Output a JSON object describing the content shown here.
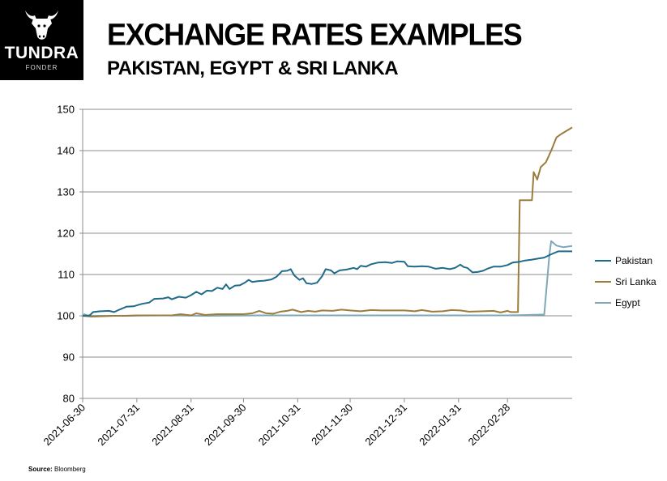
{
  "brand": {
    "name": "TUNDRA",
    "sub": "FONDER",
    "logo_icon": "bull-head-icon",
    "background": "#000000"
  },
  "title": "EXCHANGE RATES EXAMPLES",
  "subtitle": "PAKISTAN, EGYPT & SRI LANKA",
  "source": {
    "label": "Source:",
    "text": "Bloomberg"
  },
  "chart_data": {
    "type": "line",
    "title": "",
    "xlabel": "",
    "ylabel": "",
    "x_type": "date",
    "xlim": [
      "2021-06-30",
      "2022-04-06"
    ],
    "ylim": [
      80,
      150
    ],
    "yticks": [
      80,
      90,
      100,
      110,
      120,
      130,
      140,
      150
    ],
    "xticks": [
      "2021-06-30",
      "2021-07-31",
      "2021-08-31",
      "2021-09-30",
      "2021-10-31",
      "2021-11-30",
      "2021-12-31",
      "2022-01-31",
      "2022-02-28"
    ],
    "grid": "horizontal",
    "legend_position": "right",
    "series": [
      {
        "name": "Pakistan",
        "color": "#1f6b8a",
        "points": [
          [
            "2021-06-30",
            100.0
          ],
          [
            "2021-07-04",
            100.1
          ],
          [
            "2021-07-06",
            100.9
          ],
          [
            "2021-07-10",
            101.1
          ],
          [
            "2021-07-15",
            101.2
          ],
          [
            "2021-07-18",
            100.9
          ],
          [
            "2021-07-21",
            101.5
          ],
          [
            "2021-07-25",
            102.2
          ],
          [
            "2021-07-29",
            102.3
          ],
          [
            "2021-08-03",
            102.9
          ],
          [
            "2021-08-07",
            103.2
          ],
          [
            "2021-08-10",
            104.1
          ],
          [
            "2021-08-15",
            104.2
          ],
          [
            "2021-08-18",
            104.5
          ],
          [
            "2021-08-20",
            104.0
          ],
          [
            "2021-08-24",
            104.6
          ],
          [
            "2021-08-28",
            104.4
          ],
          [
            "2021-08-31",
            105.0
          ],
          [
            "2021-09-03",
            105.8
          ],
          [
            "2021-09-06",
            105.2
          ],
          [
            "2021-09-09",
            106.1
          ],
          [
            "2021-09-12",
            106.0
          ],
          [
            "2021-09-15",
            106.8
          ],
          [
            "2021-09-18",
            106.5
          ],
          [
            "2021-09-20",
            107.6
          ],
          [
            "2021-09-22",
            106.5
          ],
          [
            "2021-09-25",
            107.3
          ],
          [
            "2021-09-28",
            107.4
          ],
          [
            "2021-10-01",
            108.1
          ],
          [
            "2021-10-03",
            108.7
          ],
          [
            "2021-10-05",
            108.2
          ],
          [
            "2021-10-08",
            108.4
          ],
          [
            "2021-10-12",
            108.5
          ],
          [
            "2021-10-16",
            108.8
          ],
          [
            "2021-10-19",
            109.5
          ],
          [
            "2021-10-22",
            110.8
          ],
          [
            "2021-10-25",
            110.9
          ],
          [
            "2021-10-27",
            111.3
          ],
          [
            "2021-10-29",
            109.8
          ],
          [
            "2021-11-01",
            108.7
          ],
          [
            "2021-11-03",
            109.1
          ],
          [
            "2021-11-05",
            107.9
          ],
          [
            "2021-11-08",
            107.7
          ],
          [
            "2021-11-11",
            108.0
          ],
          [
            "2021-11-14",
            109.6
          ],
          [
            "2021-11-16",
            111.3
          ],
          [
            "2021-11-19",
            111.0
          ],
          [
            "2021-11-21",
            110.3
          ],
          [
            "2021-11-24",
            111.0
          ],
          [
            "2021-11-28",
            111.2
          ],
          [
            "2021-12-02",
            111.6
          ],
          [
            "2021-12-04",
            111.3
          ],
          [
            "2021-12-06",
            112.1
          ],
          [
            "2021-12-09",
            111.9
          ],
          [
            "2021-12-12",
            112.5
          ],
          [
            "2021-12-16",
            112.9
          ],
          [
            "2021-12-20",
            113.0
          ],
          [
            "2021-12-24",
            112.8
          ],
          [
            "2021-12-27",
            113.2
          ],
          [
            "2021-12-31",
            113.1
          ],
          [
            "2022-01-02",
            112.0
          ],
          [
            "2022-01-06",
            111.9
          ],
          [
            "2022-01-10",
            112.0
          ],
          [
            "2022-01-14",
            111.9
          ],
          [
            "2022-01-18",
            111.4
          ],
          [
            "2022-01-22",
            111.6
          ],
          [
            "2022-01-26",
            111.3
          ],
          [
            "2022-01-29",
            111.6
          ],
          [
            "2022-02-01",
            112.4
          ],
          [
            "2022-02-03",
            111.8
          ],
          [
            "2022-02-05",
            111.6
          ],
          [
            "2022-02-08",
            110.5
          ],
          [
            "2022-02-11",
            110.6
          ],
          [
            "2022-02-14",
            110.9
          ],
          [
            "2022-02-17",
            111.5
          ],
          [
            "2022-02-20",
            111.9
          ],
          [
            "2022-02-24",
            111.9
          ],
          [
            "2022-02-28",
            112.3
          ],
          [
            "2022-03-03",
            112.9
          ],
          [
            "2022-03-07",
            113.1
          ],
          [
            "2022-03-10",
            113.4
          ],
          [
            "2022-03-14",
            113.6
          ],
          [
            "2022-03-18",
            113.9
          ],
          [
            "2022-03-21",
            114.1
          ],
          [
            "2022-03-25",
            114.9
          ],
          [
            "2022-03-29",
            115.6
          ],
          [
            "2022-04-02",
            115.6
          ],
          [
            "2022-04-06",
            115.6
          ]
        ]
      },
      {
        "name": "Sri Lanka",
        "color": "#9c7c3c",
        "points": [
          [
            "2021-06-30",
            100.0
          ],
          [
            "2021-07-05",
            99.8
          ],
          [
            "2021-07-12",
            99.9
          ],
          [
            "2021-07-18",
            100.0
          ],
          [
            "2021-07-25",
            100.0
          ],
          [
            "2021-07-31",
            100.1
          ],
          [
            "2021-08-10",
            100.1
          ],
          [
            "2021-08-20",
            100.1
          ],
          [
            "2021-08-25",
            100.4
          ],
          [
            "2021-08-31",
            100.1
          ],
          [
            "2021-09-03",
            100.6
          ],
          [
            "2021-09-08",
            100.2
          ],
          [
            "2021-09-15",
            100.4
          ],
          [
            "2021-09-30",
            100.4
          ],
          [
            "2021-10-05",
            100.6
          ],
          [
            "2021-10-09",
            101.2
          ],
          [
            "2021-10-13",
            100.6
          ],
          [
            "2021-10-17",
            100.5
          ],
          [
            "2021-10-21",
            101.0
          ],
          [
            "2021-10-25",
            101.2
          ],
          [
            "2021-10-28",
            101.5
          ],
          [
            "2021-11-02",
            100.9
          ],
          [
            "2021-11-06",
            101.2
          ],
          [
            "2021-11-10",
            101.0
          ],
          [
            "2021-11-14",
            101.3
          ],
          [
            "2021-11-20",
            101.2
          ],
          [
            "2021-11-25",
            101.5
          ],
          [
            "2021-11-30",
            101.3
          ],
          [
            "2021-12-06",
            101.1
          ],
          [
            "2021-12-12",
            101.4
          ],
          [
            "2021-12-18",
            101.3
          ],
          [
            "2021-12-24",
            101.3
          ],
          [
            "2021-12-31",
            101.3
          ],
          [
            "2022-01-06",
            101.1
          ],
          [
            "2022-01-10",
            101.4
          ],
          [
            "2022-01-16",
            101.0
          ],
          [
            "2022-01-22",
            101.1
          ],
          [
            "2022-01-27",
            101.4
          ],
          [
            "2022-02-01",
            101.3
          ],
          [
            "2022-02-06",
            101.0
          ],
          [
            "2022-02-14",
            101.1
          ],
          [
            "2022-02-20",
            101.2
          ],
          [
            "2022-02-24",
            100.8
          ],
          [
            "2022-02-28",
            101.2
          ],
          [
            "2022-03-02",
            100.9
          ],
          [
            "2022-03-06",
            100.9
          ],
          [
            "2022-03-07",
            128.0
          ],
          [
            "2022-03-14",
            128.0
          ],
          [
            "2022-03-15",
            134.8
          ],
          [
            "2022-03-17",
            133.0
          ],
          [
            "2022-03-19",
            136.0
          ],
          [
            "2022-03-22",
            137.2
          ],
          [
            "2022-03-25",
            140.0
          ],
          [
            "2022-03-28",
            143.2
          ],
          [
            "2022-03-31",
            144.1
          ],
          [
            "2022-04-06",
            145.6
          ]
        ]
      },
      {
        "name": "Egypt",
        "color": "#7ea8b8",
        "points": [
          [
            "2021-06-30",
            100.0
          ],
          [
            "2021-07-01",
            100.4
          ],
          [
            "2021-07-03",
            100.0
          ],
          [
            "2021-07-20",
            100.0
          ],
          [
            "2021-08-15",
            100.1
          ],
          [
            "2021-09-10",
            100.0
          ],
          [
            "2021-10-10",
            100.1
          ],
          [
            "2021-11-10",
            100.1
          ],
          [
            "2021-12-10",
            100.1
          ],
          [
            "2022-01-10",
            100.1
          ],
          [
            "2022-02-10",
            100.1
          ],
          [
            "2022-03-01",
            100.1
          ],
          [
            "2022-03-19",
            100.3
          ],
          [
            "2022-03-21",
            100.3
          ],
          [
            "2022-03-24",
            115.0
          ],
          [
            "2022-03-25",
            118.1
          ],
          [
            "2022-03-28",
            117.0
          ],
          [
            "2022-04-01",
            116.6
          ],
          [
            "2022-04-06",
            116.9
          ]
        ]
      }
    ]
  }
}
